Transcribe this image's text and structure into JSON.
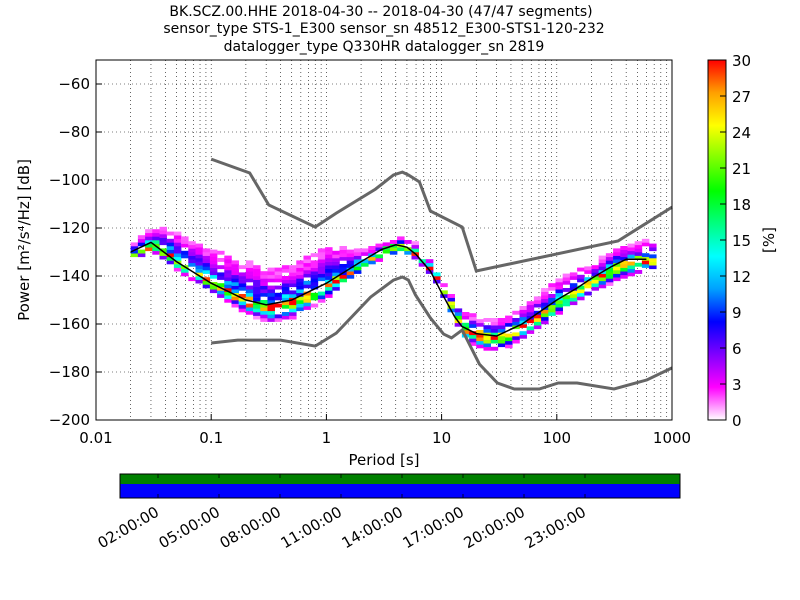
{
  "title": {
    "line1": "BK.SCZ.00.HHE   2018-04-30 -- 2018-04-30  (47/47 segments)",
    "line2": "sensor_type STS-1_E300 sensor_sn 48512_E300-STS1-120-232",
    "line3": "datalogger_type Q330HR datalogger_sn 2819"
  },
  "chart_data": {
    "type": "heatmap",
    "title": "BK.SCZ.00.HHE 2018-04-30 -- 2018-04-30 (47/47 segments)",
    "xlabel": "Period [s]",
    "ylabel": "Power [m²/s⁴/Hz] [dB]",
    "xscale": "log",
    "xlim": [
      0.01,
      1000
    ],
    "ylim": [
      -200,
      -50
    ],
    "xticks": [
      {
        "v": 0.01,
        "label": "0.01"
      },
      {
        "v": 0.1,
        "label": "0.1"
      },
      {
        "v": 1,
        "label": "1"
      },
      {
        "v": 10,
        "label": "10"
      },
      {
        "v": 100,
        "label": "100"
      },
      {
        "v": 1000,
        "label": "1000"
      }
    ],
    "yticks": [
      {
        "v": -60,
        "label": "−60"
      },
      {
        "v": -80,
        "label": "−80"
      },
      {
        "v": -100,
        "label": "−100"
      },
      {
        "v": -120,
        "label": "−120"
      },
      {
        "v": -140,
        "label": "−140"
      },
      {
        "v": -160,
        "label": "−160"
      },
      {
        "v": -180,
        "label": "−180"
      },
      {
        "v": -200,
        "label": "−200"
      }
    ],
    "grid": true,
    "mean_curve": {
      "period": [
        0.02,
        0.03,
        0.05,
        0.1,
        0.2,
        0.3,
        0.5,
        1,
        2,
        3,
        4,
        5,
        6,
        8,
        10,
        13,
        15,
        20,
        30,
        50,
        100,
        150,
        200,
        300,
        400,
        600
      ],
      "db": [
        -130,
        -126,
        -134,
        -143,
        -150,
        -152,
        -150,
        -143,
        -134,
        -129,
        -127,
        -128,
        -131,
        -138,
        -147,
        -157,
        -161,
        -164,
        -165,
        -160,
        -150,
        -145,
        -141,
        -136,
        -133,
        -133
      ]
    },
    "pdf_spread": {
      "period": [
        0.02,
        0.03,
        0.05,
        0.1,
        0.2,
        0.3,
        0.5,
        1,
        2,
        3,
        4,
        5,
        8,
        10,
        15,
        20,
        30,
        50,
        100,
        200,
        300,
        600
      ],
      "low": [
        -132,
        -130,
        -138,
        -147,
        -156,
        -159,
        -157,
        -148,
        -136,
        -132,
        -130,
        -131,
        -140,
        -150,
        -167,
        -170,
        -171,
        -165,
        -155,
        -146,
        -142,
        -137
      ],
      "high": [
        -127,
        -121,
        -123,
        -131,
        -135,
        -138,
        -136,
        -129,
        -130,
        -128,
        -125,
        -126,
        -136,
        -146,
        -157,
        -159,
        -160,
        -153,
        -142,
        -136,
        -130,
        -126
      ]
    },
    "noise_model_high": {
      "period": [
        0.1,
        0.216,
        0.316,
        0.8,
        1.22,
        2.67,
        3.82,
        4.57,
        5.15,
        6.42,
        8.0,
        15.1,
        20,
        340,
        1000
      ],
      "db": [
        -91.3,
        -97.1,
        -110.4,
        -119.6,
        -113.8,
        -103.8,
        -97.9,
        -96.7,
        -97.9,
        -100.8,
        -112.9,
        -119.6,
        -137.9,
        -125.4,
        -111.3
      ]
    },
    "noise_model_low": {
      "period": [
        0.1,
        0.17,
        0.4,
        0.8,
        1.22,
        2.42,
        3.82,
        4.57,
        5.15,
        5.93,
        8.0,
        10.4,
        12.2,
        15.1,
        21.3,
        30.5,
        42.8,
        70.4,
        103,
        150,
        314,
        607,
        1000
      ],
      "db": [
        -167.9,
        -166.7,
        -166.7,
        -169.2,
        -163.8,
        -148.8,
        -141.7,
        -140.4,
        -141.7,
        -147.9,
        -157.5,
        -164.2,
        -165.8,
        -162.5,
        -176.7,
        -184.6,
        -187.1,
        -187.1,
        -184.6,
        -184.6,
        -187.1,
        -183.3,
        -178.3
      ]
    },
    "colorbar": {
      "label": "[%]",
      "range": [
        0,
        30
      ],
      "ticks": [
        "0",
        "3",
        "6",
        "9",
        "12",
        "15",
        "18",
        "21",
        "24",
        "27",
        "30"
      ],
      "stops": [
        "#ffffff",
        "#ff00ff",
        "#8000ff",
        "#0000ff",
        "#00a0ff",
        "#00ffff",
        "#00ff80",
        "#00ff00",
        "#80ff00",
        "#ffff00",
        "#ffa000",
        "#ff0000"
      ]
    },
    "coverage": {
      "tick_labels": [
        "02:00:00",
        "05:00:00",
        "08:00:00",
        "11:00:00",
        "14:00:00",
        "17:00:00",
        "20:00:00",
        "23:00:00"
      ],
      "data_color": "#008000",
      "used_color": "#0000ff"
    }
  }
}
